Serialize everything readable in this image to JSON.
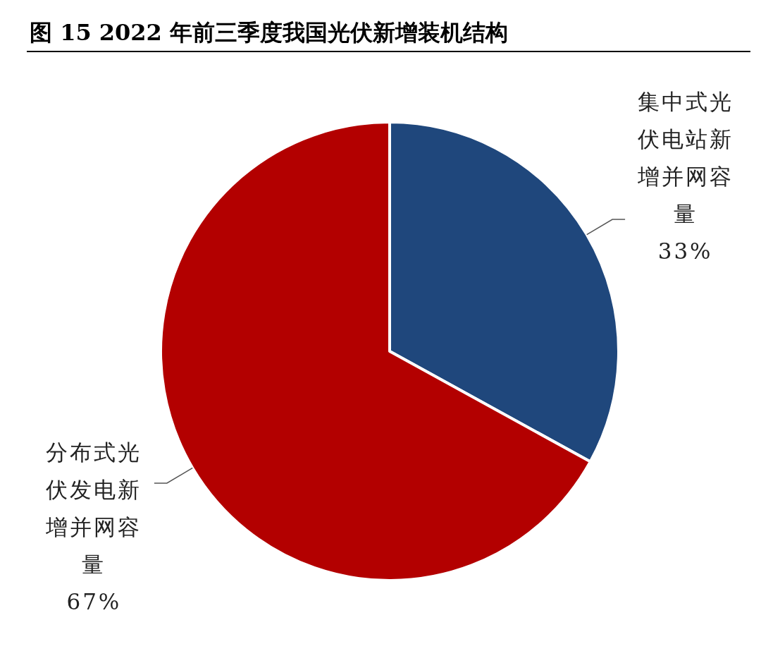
{
  "chart_data": {
    "type": "pie",
    "title": "图 15   2022 年前三季度我国光伏新增装机结构",
    "categories": [
      "集中式光伏电站新增并网容量",
      "分布式光伏发电新增并网容量"
    ],
    "values": [
      33,
      67
    ],
    "colors": [
      "#1f477c",
      "#b30000"
    ],
    "value_labels": [
      "33%",
      "67%"
    ]
  }
}
